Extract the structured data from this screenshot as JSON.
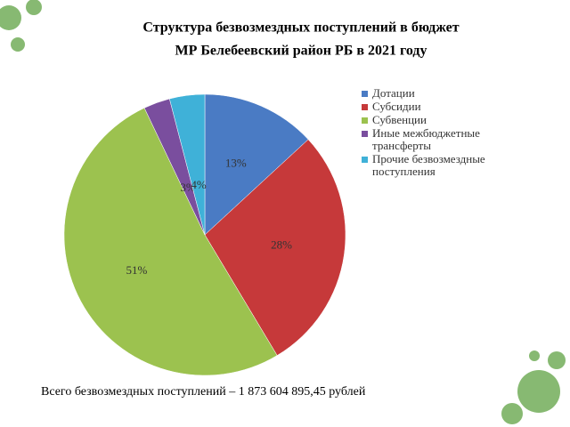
{
  "chart_data": {
    "type": "pie",
    "title": "Структура безвозмездных поступлений в бюджет",
    "subtitle": "МР Белебеевский район РБ в 2021 году",
    "categories": [
      "Дотации",
      "Субсидии",
      "Субвенции",
      "Иные межбюджетные трансферты",
      "Прочие безвозмездные поступления"
    ],
    "values": [
      13,
      28,
      51,
      3,
      4
    ],
    "value_labels": [
      "13%",
      "28%",
      "51%",
      "3%",
      "4%"
    ],
    "colors": [
      "#4a7bc4",
      "#c6393a",
      "#9cc24f",
      "#7a4e9e",
      "#3fb1d8"
    ],
    "legend": "right",
    "note": "Всего безвозмездных поступлений – 1 873 604 895,45 рублей"
  }
}
